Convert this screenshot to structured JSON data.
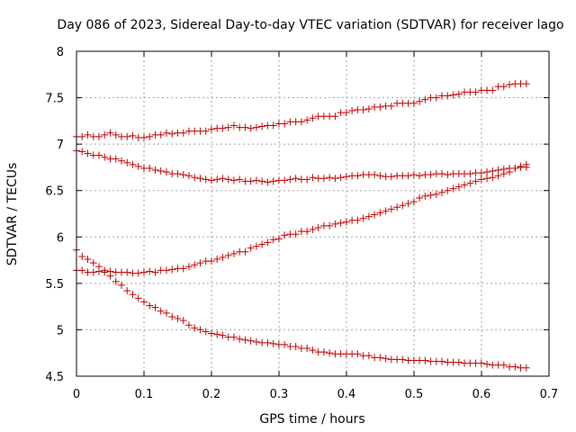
{
  "chart_data": {
    "type": "scatter",
    "title": "Day 086 of 2023, Sidereal Day-to-day VTEC variation (SDTVAR) for receiver lago",
    "xlabel": "GPS time / hours",
    "ylabel": "SDTVAR / TECUs",
    "xlim": [
      0,
      0.7
    ],
    "ylim": [
      4.5,
      8
    ],
    "xticks": [
      0,
      0.1,
      0.2,
      0.3,
      0.4,
      0.5,
      0.6,
      0.7
    ],
    "yticks": [
      4.5,
      5,
      5.5,
      6,
      6.5,
      7,
      7.5,
      8
    ],
    "xtick_labels": [
      "0",
      "0.1",
      "0.2",
      "0.3",
      "0.4",
      "0.5",
      "0.6",
      "0.7"
    ],
    "ytick_labels": [
      "4.5",
      "5",
      "5.5",
      "6",
      "6.5",
      "7",
      "7.5",
      "8"
    ],
    "grid": true,
    "marker": "+",
    "marker_color": "#c00000",
    "x_start": 0,
    "x_step": 0.00833,
    "series": [
      {
        "name": "series-1",
        "values": [
          7.08,
          7.08,
          7.1,
          7.08,
          7.08,
          7.1,
          7.12,
          7.1,
          7.08,
          7.08,
          7.09,
          7.07,
          7.07,
          7.08,
          7.1,
          7.1,
          7.12,
          7.11,
          7.12,
          7.12,
          7.14,
          7.14,
          7.14,
          7.14,
          7.16,
          7.17,
          7.17,
          7.18,
          7.2,
          7.18,
          7.18,
          7.17,
          7.18,
          7.19,
          7.2,
          7.2,
          7.22,
          7.22,
          7.24,
          7.24,
          7.24,
          7.26,
          7.28,
          7.3,
          7.3,
          7.3,
          7.3,
          7.34,
          7.34,
          7.36,
          7.37,
          7.37,
          7.38,
          7.4,
          7.4,
          7.41,
          7.41,
          7.44,
          7.44,
          7.44,
          7.44,
          7.46,
          7.48,
          7.5,
          7.5,
          7.52,
          7.52,
          7.53,
          7.54,
          7.56,
          7.56,
          7.56,
          7.58,
          7.58,
          7.58,
          7.62,
          7.62,
          7.64,
          7.65,
          7.65,
          7.65
        ]
      },
      {
        "name": "series-2",
        "values": [
          6.93,
          6.92,
          6.9,
          6.88,
          6.88,
          6.86,
          6.84,
          6.84,
          6.82,
          6.8,
          6.78,
          6.76,
          6.74,
          6.74,
          6.72,
          6.71,
          6.7,
          6.68,
          6.68,
          6.67,
          6.66,
          6.64,
          6.63,
          6.62,
          6.61,
          6.62,
          6.63,
          6.62,
          6.61,
          6.62,
          6.6,
          6.6,
          6.61,
          6.6,
          6.59,
          6.6,
          6.61,
          6.61,
          6.62,
          6.63,
          6.62,
          6.62,
          6.64,
          6.63,
          6.63,
          6.64,
          6.63,
          6.64,
          6.65,
          6.66,
          6.66,
          6.67,
          6.67,
          6.67,
          6.66,
          6.65,
          6.65,
          6.66,
          6.66,
          6.66,
          6.67,
          6.66,
          6.67,
          6.67,
          6.68,
          6.68,
          6.67,
          6.68,
          6.68,
          6.68,
          6.68,
          6.69,
          6.69,
          6.7,
          6.71,
          6.72,
          6.73,
          6.74,
          6.74,
          6.75,
          6.75
        ]
      },
      {
        "name": "series-3",
        "values": [
          5.64,
          5.64,
          5.62,
          5.62,
          5.63,
          5.62,
          5.63,
          5.62,
          5.62,
          5.62,
          5.61,
          5.61,
          5.62,
          5.63,
          5.62,
          5.64,
          5.64,
          5.65,
          5.66,
          5.66,
          5.68,
          5.7,
          5.72,
          5.74,
          5.74,
          5.76,
          5.78,
          5.8,
          5.82,
          5.84,
          5.84,
          5.88,
          5.9,
          5.92,
          5.94,
          5.97,
          5.98,
          6.02,
          6.03,
          6.03,
          6.06,
          6.06,
          6.08,
          6.1,
          6.12,
          6.12,
          6.14,
          6.15,
          6.16,
          6.18,
          6.18,
          6.2,
          6.22,
          6.24,
          6.26,
          6.28,
          6.3,
          6.32,
          6.34,
          6.36,
          6.38,
          6.42,
          6.44,
          6.45,
          6.46,
          6.48,
          6.5,
          6.52,
          6.54,
          6.56,
          6.58,
          6.6,
          6.62,
          6.63,
          6.64,
          6.66,
          6.68,
          6.7,
          6.74,
          6.76,
          6.78
        ]
      },
      {
        "name": "series-4",
        "values": [
          5.86,
          5.79,
          5.76,
          5.72,
          5.68,
          5.64,
          5.58,
          5.52,
          5.48,
          5.42,
          5.38,
          5.34,
          5.3,
          5.26,
          5.24,
          5.2,
          5.18,
          5.14,
          5.12,
          5.1,
          5.05,
          5.02,
          5.0,
          4.98,
          4.96,
          4.95,
          4.94,
          4.92,
          4.92,
          4.9,
          4.89,
          4.88,
          4.87,
          4.86,
          4.86,
          4.85,
          4.84,
          4.84,
          4.82,
          4.82,
          4.8,
          4.8,
          4.78,
          4.76,
          4.76,
          4.75,
          4.74,
          4.74,
          4.74,
          4.74,
          4.74,
          4.72,
          4.72,
          4.7,
          4.7,
          4.69,
          4.68,
          4.68,
          4.68,
          4.67,
          4.67,
          4.67,
          4.67,
          4.66,
          4.66,
          4.66,
          4.65,
          4.65,
          4.65,
          4.64,
          4.64,
          4.64,
          4.64,
          4.63,
          4.62,
          4.62,
          4.62,
          4.6,
          4.6,
          4.59,
          4.59
        ]
      }
    ]
  }
}
